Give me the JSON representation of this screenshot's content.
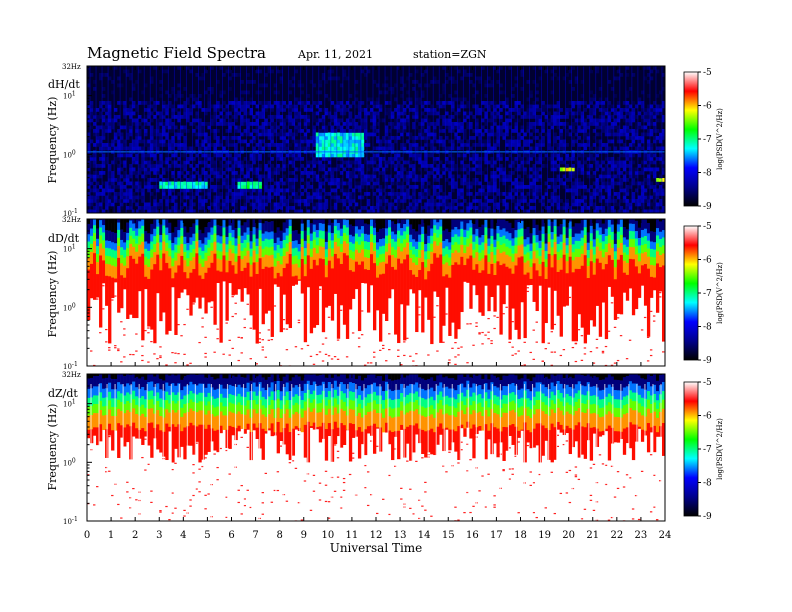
{
  "header": {
    "title": "Magnetic  Field  Spectra",
    "date": "Apr. 11, 2021",
    "station": "station=ZGN"
  },
  "chart_data": {
    "type": "heatmap",
    "xlabel": "Universal Time",
    "x_ticks": [
      "0",
      "1",
      "2",
      "3",
      "4",
      "5",
      "6",
      "7",
      "8",
      "9",
      "10",
      "11",
      "12",
      "13",
      "14",
      "15",
      "16",
      "17",
      "18",
      "19",
      "20",
      "21",
      "22",
      "23",
      "24"
    ],
    "xlim": [
      0,
      24
    ],
    "y_scale": "log",
    "ylim": [
      0.1,
      32
    ],
    "colorbar": {
      "label": "log(PSD(V^2/Hz)",
      "ticks": [
        "-5",
        "-6",
        "-7",
        "-8",
        "-9"
      ],
      "range": [
        -9,
        -5
      ],
      "colormap": [
        "#000000",
        "#00008c",
        "#0000ff",
        "#00ffff",
        "#00ff00",
        "#ffff00",
        "#ff0000",
        "#ffffff"
      ]
    },
    "panels": [
      {
        "name": "dH/dt",
        "ylabel": "Frequency  (Hz)",
        "top_label": "32Hz",
        "y_ticks": [
          {
            "label": "10",
            "exp": "1",
            "value": 10
          },
          {
            "label": "10",
            "exp": "0",
            "value": 1
          },
          {
            "label": "10",
            "exp": "-1",
            "value": 0.1
          }
        ],
        "background_level": -8.6,
        "features": [
          {
            "t": [
              9.5,
              11.5
            ],
            "f": [
              0.9,
              2.2
            ],
            "level": -7.3,
            "note": "diffuse cyan band around 1 Hz"
          },
          {
            "t": [
              3.0,
              5.0
            ],
            "f": [
              0.25,
              0.35
            ],
            "level": -7.2
          },
          {
            "t": [
              6.3,
              7.3
            ],
            "f": [
              0.25,
              0.35
            ],
            "level": -7.0
          },
          {
            "t": [
              19.6,
              20.3
            ],
            "f": [
              0.5,
              0.6
            ],
            "level": -6.2
          },
          {
            "t": [
              23.6,
              24.0
            ],
            "f": [
              0.35,
              0.4
            ],
            "level": -6.3
          }
        ],
        "constant_lines_hz": [
          1.1
        ]
      },
      {
        "name": "dD/dt",
        "ylabel": "Frequency  (Hz)",
        "top_label": "32Hz",
        "y_ticks": [
          {
            "label": "10",
            "exp": "1",
            "value": 10
          },
          {
            "label": "10",
            "exp": "0",
            "value": 1
          },
          {
            "label": "10",
            "exp": "-1",
            "value": 0.1
          }
        ],
        "gradient_hz": {
          "black": 30,
          "blue": 20,
          "cyan": 15,
          "green": 11,
          "yellow": 8,
          "red": 5,
          "white_below": 0.5
        }
      },
      {
        "name": "dZ/dt",
        "ylabel": "Frequency  (Hz)",
        "top_label": "32Hz",
        "y_ticks": [
          {
            "label": "10",
            "exp": "1",
            "value": 10
          },
          {
            "label": "10",
            "exp": "0",
            "value": 1
          },
          {
            "label": "10",
            "exp": "-1",
            "value": 0.1
          }
        ],
        "gradient_hz": {
          "black": 30,
          "blue": 20,
          "cyan": 14,
          "green": 10,
          "yellow": 7,
          "red": 4,
          "white_below": 1.5
        }
      }
    ]
  }
}
